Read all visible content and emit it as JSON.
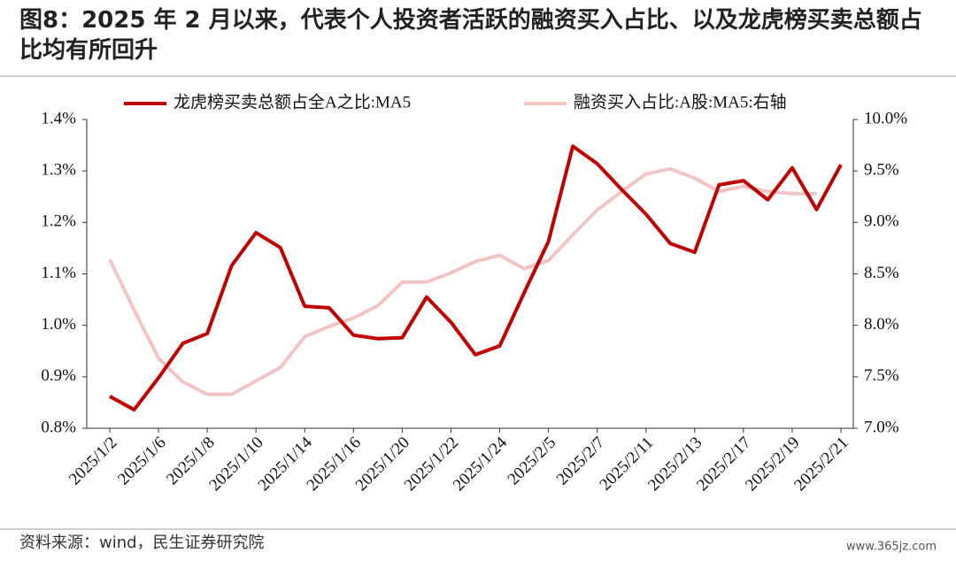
{
  "chart_data": {
    "type": "line",
    "title": "图8：2025 年 2 月以来，代表个人投资者活跃的融资买入占比、以及龙虎榜买卖总额占比均有所回升",
    "source": "资料来源：wind，民生证券研究院",
    "watermark": "www.365jz.com",
    "categories": [
      "2025/1/2",
      null,
      "2025/1/6",
      null,
      "2025/1/8",
      null,
      "2025/1/10",
      null,
      "2025/1/14",
      null,
      "2025/1/16",
      null,
      "2025/1/20",
      null,
      "2025/1/22",
      null,
      "2025/1/24",
      null,
      "2025/2/5",
      null,
      "2025/2/7",
      null,
      "2025/2/11",
      null,
      "2025/2/13",
      null,
      "2025/2/17",
      null,
      "2025/2/19",
      null,
      "2025/2/21"
    ],
    "series": [
      {
        "name": "龙虎榜买卖总额占全A之比:MA5",
        "color": "#c00000",
        "axis": "y",
        "values": [
          0.862,
          0.836,
          0.898,
          0.965,
          0.984,
          1.116,
          1.18,
          1.151,
          1.037,
          1.034,
          0.981,
          0.974,
          0.976,
          1.055,
          1.006,
          0.943,
          0.96,
          1.063,
          1.163,
          1.348,
          1.314,
          1.264,
          1.216,
          1.159,
          1.142,
          1.273,
          1.281,
          1.244,
          1.306,
          1.225,
          1.312
        ]
      },
      {
        "name": "融资买入占比:A股:MA5:右轴",
        "color": "#f2c4c4",
        "axis": "y2",
        "values": [
          8.64,
          8.15,
          7.68,
          7.45,
          7.33,
          7.33,
          7.46,
          7.59,
          7.89,
          7.99,
          8.07,
          8.19,
          8.42,
          8.42,
          8.51,
          8.62,
          8.68,
          8.55,
          8.63,
          8.88,
          9.12,
          9.3,
          9.47,
          9.52,
          9.43,
          9.3,
          9.35,
          9.3,
          9.28,
          9.28,
          null
        ]
      }
    ],
    "ylim": [
      0.8,
      1.4
    ],
    "yticks": [
      {
        "value": 0.8,
        "label": "0.8%"
      },
      {
        "value": 0.9,
        "label": "0.9%"
      },
      {
        "value": 1.0,
        "label": "1.0%"
      },
      {
        "value": 1.1,
        "label": "1.1%"
      },
      {
        "value": 1.2,
        "label": "1.2%"
      },
      {
        "value": 1.3,
        "label": "1.3%"
      },
      {
        "value": 1.4,
        "label": "1.4%"
      }
    ],
    "y2lim": [
      7,
      10
    ],
    "y2ticks": [
      {
        "value": 7,
        "label": "7.0%"
      },
      {
        "value": 7.5,
        "label": "7.5%"
      },
      {
        "value": 8,
        "label": "8.0%"
      },
      {
        "value": 8.5,
        "label": "8.5%"
      },
      {
        "value": 9,
        "label": "9.0%"
      },
      {
        "value": 9.5,
        "label": "9.5%"
      },
      {
        "value": 10,
        "label": "10.0%"
      }
    ],
    "legend": "top"
  }
}
